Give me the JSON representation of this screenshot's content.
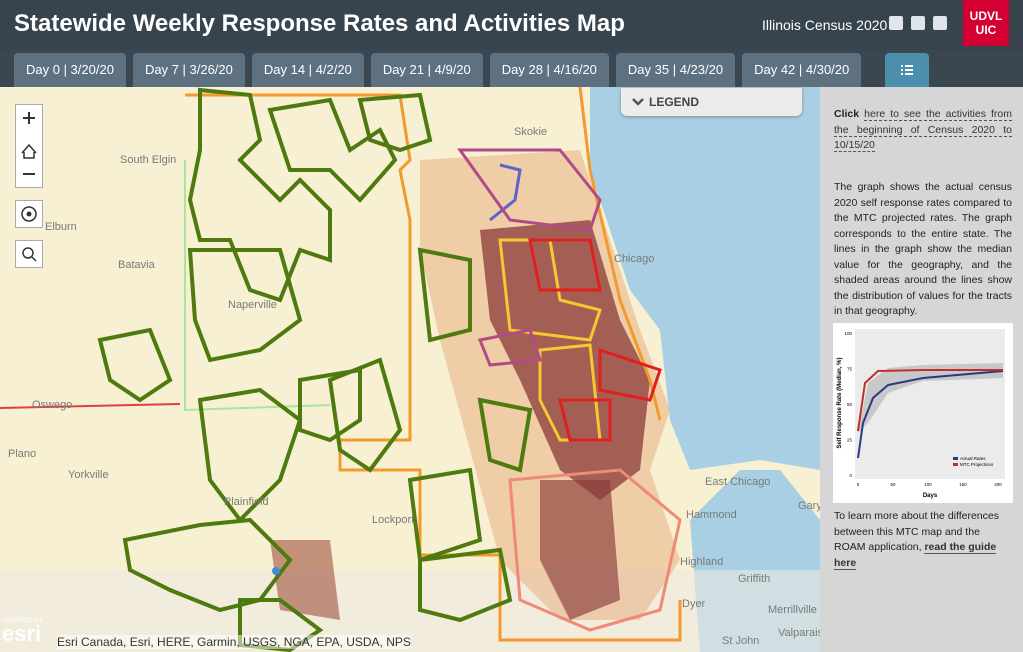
{
  "header": {
    "title": "Statewide Weekly Response Rates and Activities Map",
    "site_label": "Illinois Census 2020",
    "logo_top": "UDVL",
    "logo_bottom": "UIC"
  },
  "tabs": [
    "Day 0 | 3/20/20",
    "Day 7 | 3/26/20",
    "Day 14 | 4/2/20",
    "Day 21 | 4/9/20",
    "Day 28 | 4/16/20",
    "Day 35 | 4/23/20",
    "Day 42 | 4/30/20"
  ],
  "legend": {
    "label": "LEGEND"
  },
  "map": {
    "places": [
      "Skokie",
      "South Elgin",
      "Elburn",
      "Batavia",
      "Naperville",
      "Oswego",
      "Plano",
      "Yorkville",
      "Plainfield",
      "Lockport",
      "Chicago",
      "East Chicago",
      "Hammond",
      "Gary",
      "Highland",
      "Griffith",
      "Dyer",
      "Merrillville",
      "St John",
      "Valparaiso"
    ],
    "attribution": "Esri Canada, Esri, HERE, Garmin, USGS, NGA, EPA, USDA, NPS",
    "powered_by": "POWERED BY",
    "esri": "esri"
  },
  "sidebar": {
    "click_prefix": "Click",
    "click_link": "here to see the activities from the beginning of Census 2020 to 10/15/20",
    "description": "The graph shows the actual census 2020 self response rates compared to the MTC projected rates. The graph corresponds to the entire state. The lines in the graph show the median value for the geography, and the shaded areas around the lines show the distribution of values for the tracts in that geography.",
    "inset": {
      "y_label": "Self Response Rate (Median, %)",
      "x_label": "Days",
      "legend": [
        "Actual Rates",
        "MTC Projections"
      ],
      "yticks": [
        "0",
        "25",
        "50",
        "75",
        "100"
      ],
      "xticks": [
        "0",
        "50",
        "100",
        "150",
        "200"
      ]
    },
    "guide_prefix": "To learn more about the differences between this MTC map and the ROAM application,",
    "guide_link": "read the guide here"
  }
}
